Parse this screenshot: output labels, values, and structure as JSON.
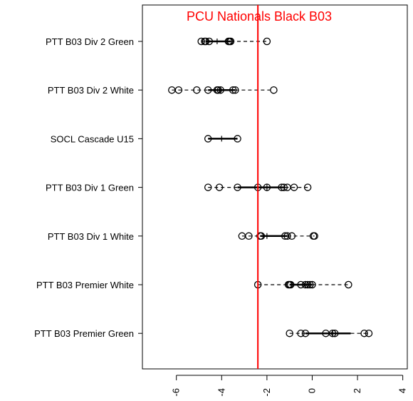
{
  "chart_data": {
    "type": "boxplot",
    "title": "PCU Nationals Black B03",
    "xlabel": "",
    "ylabel": "",
    "xlim": [
      -7.5,
      4.2
    ],
    "x_ticks": [
      -6,
      -4,
      -2,
      0,
      2,
      4
    ],
    "x_tick_labels": [
      "-6",
      "-4",
      "-2",
      "0",
      "2",
      "4"
    ],
    "reference_line": {
      "value": -2.4,
      "color": "#ff0000"
    },
    "categories": [
      "PTT B03 Div 2 Green",
      "PTT B03 Div 2 White",
      "SOCL Cascade U15",
      "PTT B03 Div 1 Green",
      "PTT B03 Div 1 White",
      "PTT B03 Premier White",
      "PTT B03 Premier Green"
    ],
    "groups": [
      {
        "name": "PTT B03 Div 2 Green",
        "whisker_low": -4.9,
        "q1": -4.7,
        "median": -4.2,
        "q3": -3.6,
        "whisker_high": -2.0,
        "points": [
          -4.9,
          -4.75,
          -4.7,
          -4.55,
          -3.7,
          -3.65,
          -3.6,
          -2.0
        ]
      },
      {
        "name": "PTT B03 Div 2 White",
        "whisker_low": -6.2,
        "q1": -4.6,
        "median": -4.1,
        "q3": -3.4,
        "whisker_high": -1.7,
        "points": [
          -6.2,
          -5.9,
          -5.1,
          -4.6,
          -4.2,
          -4.15,
          -4.05,
          -3.5,
          -3.4,
          -1.7
        ]
      },
      {
        "name": "SOCL Cascade U15",
        "whisker_low": -4.6,
        "q1": -4.6,
        "median": -4.0,
        "q3": -3.3,
        "whisker_high": -3.3,
        "points": [
          -4.6,
          -3.3
        ]
      },
      {
        "name": "PTT B03 Div 1 Green",
        "whisker_low": -4.6,
        "q1": -3.3,
        "median": -2.0,
        "q3": -1.2,
        "whisker_high": -0.2,
        "points": [
          -4.6,
          -4.1,
          -3.3,
          -2.4,
          -2.0,
          -1.35,
          -1.25,
          -1.1,
          -0.8,
          -0.2
        ]
      },
      {
        "name": "PTT B03 Div 1 White",
        "whisker_low": -3.1,
        "q1": -2.3,
        "median": -2.0,
        "q3": -1.1,
        "whisker_high": 0.1,
        "points": [
          -3.1,
          -2.8,
          -2.3,
          -2.25,
          -1.2,
          -1.1,
          -0.9,
          0.05,
          0.1
        ]
      },
      {
        "name": "PTT B03 Premier White",
        "whisker_low": -2.4,
        "q1": -1.0,
        "median": -0.3,
        "q3": 0.0,
        "whisker_high": 1.6,
        "points": [
          -2.4,
          -1.05,
          -1.0,
          -0.95,
          -0.5,
          -0.3,
          -0.2,
          -0.1,
          0.0,
          1.6
        ]
      },
      {
        "name": "PTT B03 Premier Green",
        "whisker_low": -1.0,
        "q1": -0.3,
        "median": 0.9,
        "q3": 1.7,
        "whisker_high": 2.5,
        "points": [
          -1.0,
          -0.5,
          -0.3,
          0.6,
          0.9,
          1.0,
          2.3,
          2.5
        ]
      }
    ]
  }
}
